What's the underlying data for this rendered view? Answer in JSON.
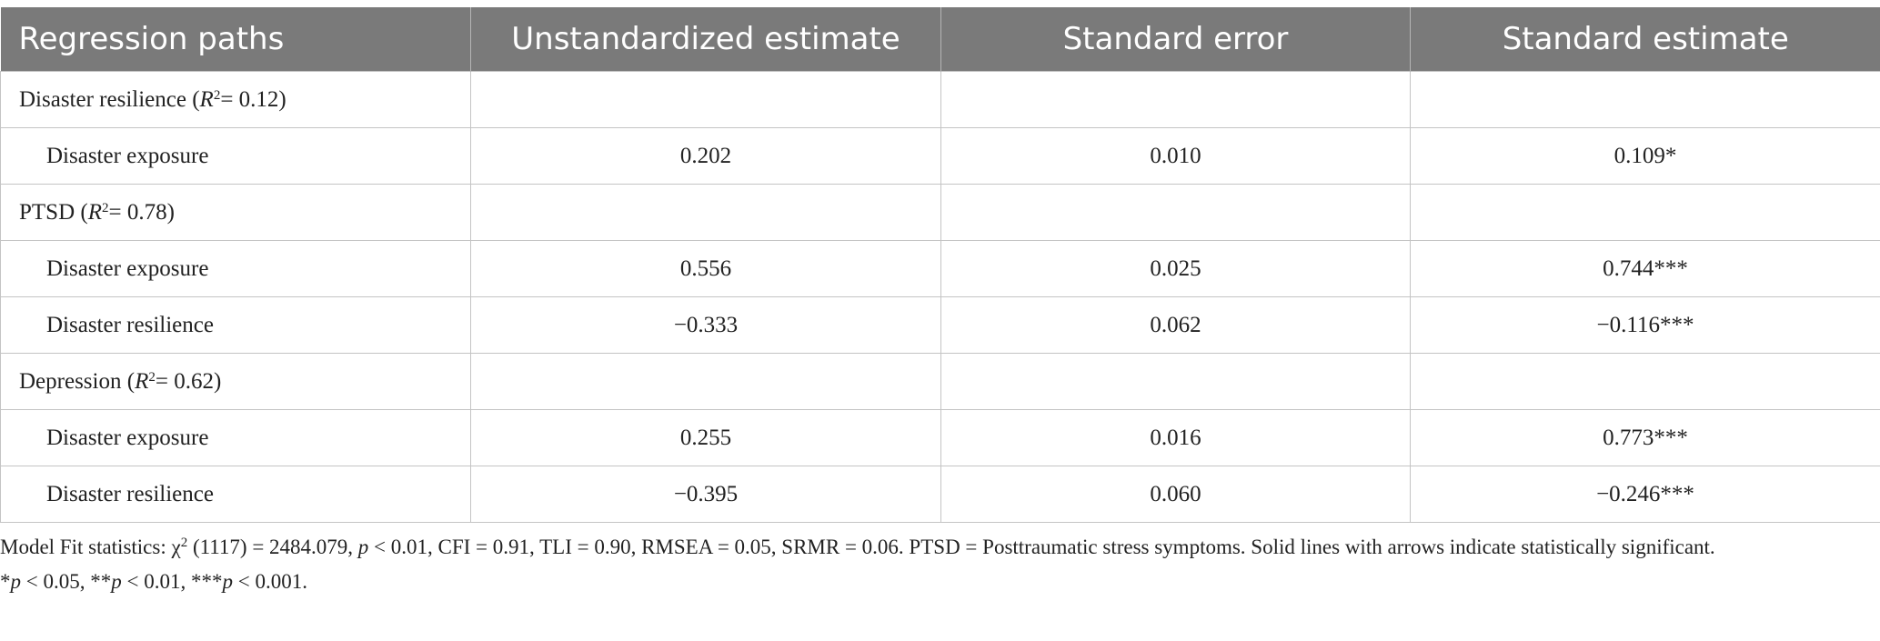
{
  "table": {
    "headers": [
      "Regression paths",
      "Unstandardized estimate",
      "Standard error",
      "Standard estimate"
    ],
    "groups": [
      {
        "name": "Disaster resilience",
        "r2_label": "R",
        "r2_sup": "2",
        "r2_value": "= 0.12",
        "rows": [
          {
            "path": "Disaster exposure",
            "unstd": "0.202",
            "se": "0.010",
            "std": "0.109*"
          }
        ]
      },
      {
        "name": "PTSD",
        "r2_label": "R",
        "r2_sup": "2",
        "r2_value": "= 0.78",
        "rows": [
          {
            "path": "Disaster exposure",
            "unstd": "0.556",
            "se": "0.025",
            "std": "0.744***"
          },
          {
            "path": "Disaster resilience",
            "unstd": "−0.333",
            "se": "0.062",
            "std": "−0.116***"
          }
        ]
      },
      {
        "name": "Depression",
        "r2_label": "R",
        "r2_sup": "2",
        "r2_value": "= 0.62",
        "rows": [
          {
            "path": "Disaster exposure",
            "unstd": "0.255",
            "se": "0.016",
            "std": "0.773***"
          },
          {
            "path": "Disaster resilience",
            "unstd": "−0.395",
            "se": "0.060",
            "std": "−0.246***"
          }
        ]
      }
    ]
  },
  "notes": {
    "fit_prefix": "Model Fit statistics: χ",
    "fit_sup": "2",
    "fit_mid": " (1117) = 2484.079, ",
    "fit_p": "p",
    "fit_rest": " < 0.01, CFI = 0.91, TLI = 0.90, RMSEA = 0.05, SRMR = 0.06. PTSD = Posttraumatic stress symptoms. Solid lines with arrows indicate statistically significant.",
    "sig_1a": "*",
    "sig_1p": "p",
    "sig_1b": " < 0.05, **",
    "sig_2p": "p",
    "sig_2b": " < 0.01, ***",
    "sig_3p": "p",
    "sig_3b": " < 0.001."
  }
}
